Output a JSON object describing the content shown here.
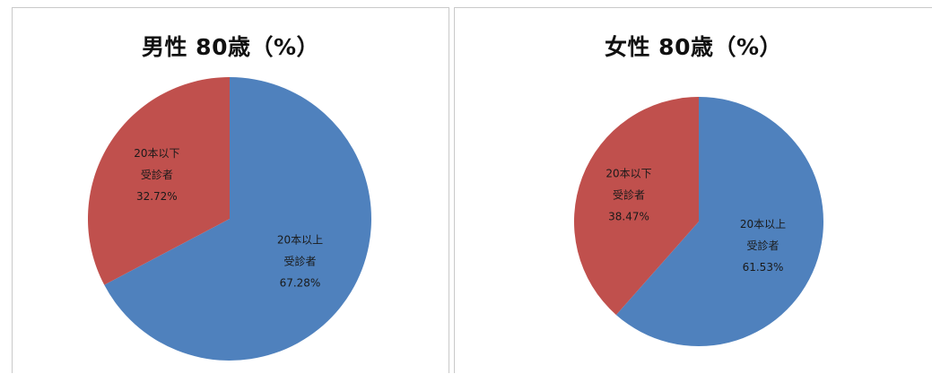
{
  "colors": {
    "series_blue": "#4f81bd",
    "series_red": "#c0504d"
  },
  "chart_data": [
    {
      "type": "pie",
      "title": "男性 80歳（%）",
      "slices": [
        {
          "label_lines": [
            "20本以上",
            "受診者",
            "67.28%"
          ],
          "value": 67.28,
          "color": "#4f81bd"
        },
        {
          "label_lines": [
            "20本以下",
            "受診者",
            "32.72%"
          ],
          "value": 32.72,
          "color": "#c0504d"
        }
      ]
    },
    {
      "type": "pie",
      "title": "女性 80歳（%）",
      "slices": [
        {
          "label_lines": [
            "20本以上",
            "受診者",
            "61.53%"
          ],
          "value": 61.53,
          "color": "#4f81bd"
        },
        {
          "label_lines": [
            "20本以下",
            "受診者",
            "38.47%"
          ],
          "value": 38.47,
          "color": "#c0504d"
        }
      ]
    }
  ]
}
